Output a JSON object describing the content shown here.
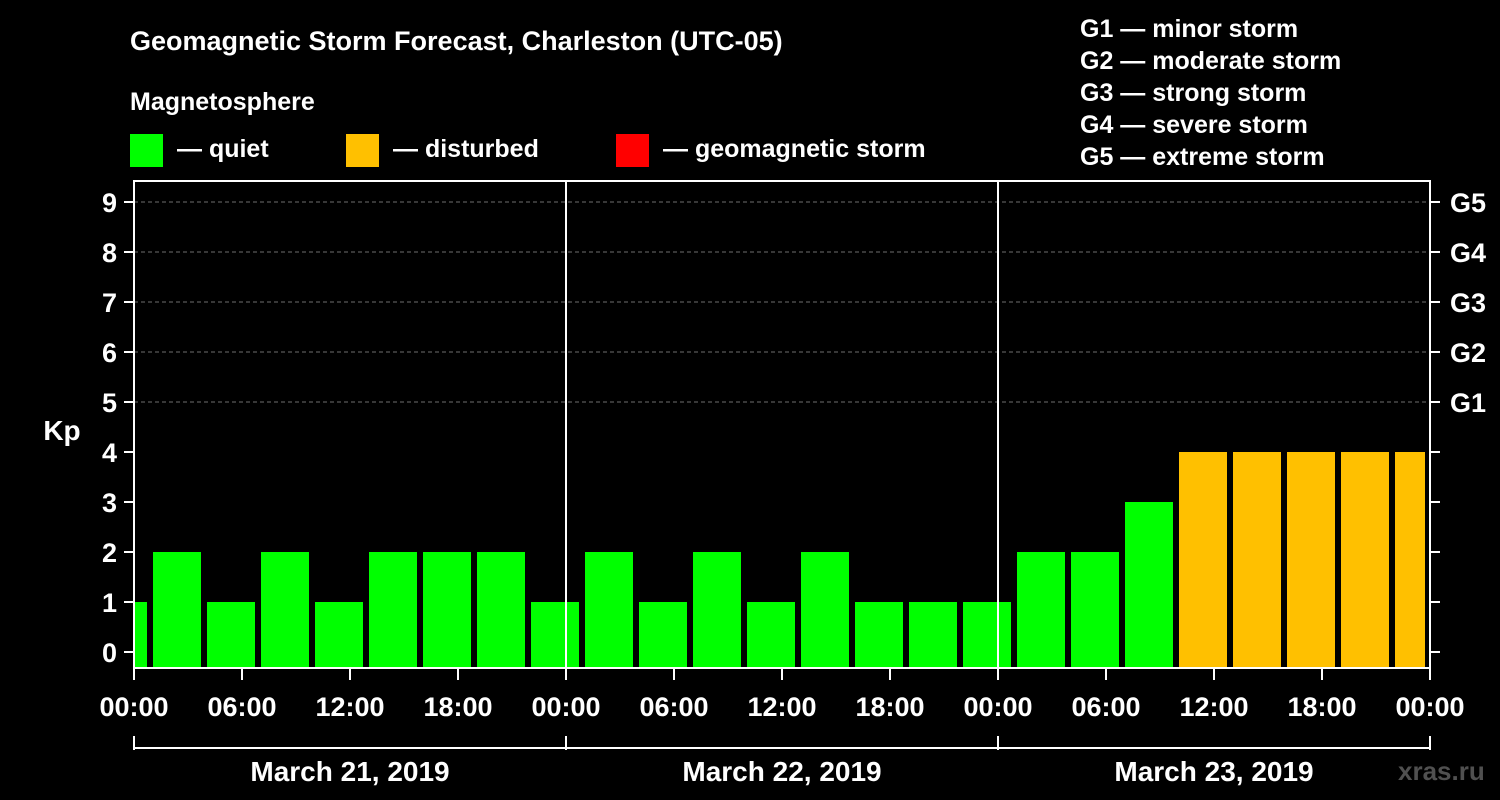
{
  "title": "Geomagnetic Storm Forecast, Charleston (UTC-05)",
  "legend": {
    "heading": "Magnetosphere",
    "items": [
      {
        "label": "— quiet",
        "color": "#00ff00"
      },
      {
        "label": "— disturbed",
        "color": "#ffc000"
      },
      {
        "label": "— geomagnetic storm",
        "color": "#ff0000"
      }
    ]
  },
  "storm_scale": [
    "G1 — minor storm",
    "G2 — moderate storm",
    "G3 — strong storm",
    "G4 — severe storm",
    "G5 — extreme storm"
  ],
  "watermark": "xras.ru",
  "chart_data": {
    "type": "bar",
    "title": "Geomagnetic Storm Forecast, Charleston (UTC-05)",
    "ylabel": "Kp",
    "ylim": [
      0,
      9
    ],
    "y_ticks": [
      "0",
      "1",
      "2",
      "3",
      "4",
      "5",
      "6",
      "7",
      "8",
      "9"
    ],
    "right_axis_labels": [
      {
        "kp": 5,
        "label": "G1"
      },
      {
        "kp": 6,
        "label": "G2"
      },
      {
        "kp": 7,
        "label": "G3"
      },
      {
        "kp": 8,
        "label": "G4"
      },
      {
        "kp": 9,
        "label": "G5"
      }
    ],
    "x_range_hours": [
      0,
      72
    ],
    "x_ticks": [
      {
        "hour": 0,
        "label": "00:00"
      },
      {
        "hour": 6,
        "label": "06:00"
      },
      {
        "hour": 12,
        "label": "12:00"
      },
      {
        "hour": 18,
        "label": "18:00"
      },
      {
        "hour": 24,
        "label": "00:00"
      },
      {
        "hour": 30,
        "label": "06:00"
      },
      {
        "hour": 36,
        "label": "12:00"
      },
      {
        "hour": 42,
        "label": "18:00"
      },
      {
        "hour": 48,
        "label": "00:00"
      },
      {
        "hour": 54,
        "label": "06:00"
      },
      {
        "hour": 60,
        "label": "12:00"
      },
      {
        "hour": 66,
        "label": "18:00"
      },
      {
        "hour": 72,
        "label": "00:00"
      }
    ],
    "days": [
      "March 21, 2019",
      "March 22, 2019",
      "March 23, 2019"
    ],
    "grid_kp": [
      5,
      6,
      7,
      8,
      9
    ],
    "bar_start_hours": [
      0,
      1,
      4,
      7,
      10,
      13,
      16,
      19,
      22,
      25,
      28,
      31,
      34,
      37,
      40,
      43,
      46,
      49,
      52,
      55,
      58,
      61,
      64,
      67,
      70
    ],
    "bar_end_hours": [
      1,
      4,
      7,
      10,
      13,
      16,
      19,
      22,
      25,
      28,
      31,
      34,
      37,
      40,
      43,
      46,
      49,
      52,
      55,
      58,
      61,
      64,
      67,
      70,
      72
    ],
    "values": [
      1,
      2,
      1,
      2,
      1,
      2,
      2,
      2,
      1,
      2,
      1,
      2,
      1,
      2,
      1,
      1,
      1,
      2,
      2,
      3,
      4,
      4,
      4,
      4,
      4
    ],
    "status": [
      "quiet",
      "quiet",
      "quiet",
      "quiet",
      "quiet",
      "quiet",
      "quiet",
      "quiet",
      "quiet",
      "quiet",
      "quiet",
      "quiet",
      "quiet",
      "quiet",
      "quiet",
      "quiet",
      "quiet",
      "quiet",
      "quiet",
      "quiet",
      "disturbed",
      "disturbed",
      "disturbed",
      "disturbed",
      "disturbed"
    ],
    "status_colors": {
      "quiet": "#00ff00",
      "disturbed": "#ffc000",
      "storm": "#ff0000"
    }
  }
}
